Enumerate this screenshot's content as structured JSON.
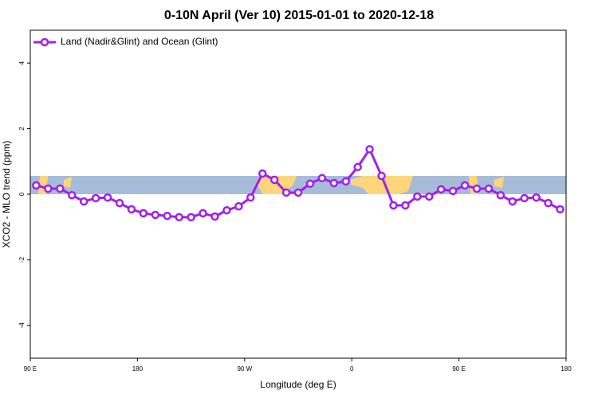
{
  "chart_data": {
    "type": "line",
    "title": "0-10N April (Ver 10)   2015-01-01 to 2020-12-18",
    "xlabel": "Longitude (deg E)",
    "ylabel": "XCO2 - MLO trend (ppm)",
    "x": [
      95,
      105,
      115,
      125,
      135,
      145,
      155,
      165,
      175,
      185,
      195,
      205,
      215,
      225,
      235,
      245,
      255,
      265,
      275,
      285,
      295,
      305,
      315,
      325,
      335,
      345,
      355,
      365,
      375,
      385,
      395,
      405,
      415,
      425,
      435,
      445,
      455,
      465,
      475,
      485,
      495,
      505,
      515,
      525,
      535
    ],
    "series": [
      {
        "name": "Land (Nadir&Glint) and Ocean (Glint)",
        "color": "#a020f0",
        "values": [
          0.27,
          0.17,
          0.17,
          -0.03,
          -0.22,
          -0.12,
          -0.1,
          -0.27,
          -0.46,
          -0.58,
          -0.63,
          -0.66,
          -0.7,
          -0.7,
          -0.58,
          -0.68,
          -0.49,
          -0.37,
          -0.1,
          0.63,
          0.44,
          0.05,
          0.05,
          0.32,
          0.49,
          0.34,
          0.39,
          0.83,
          1.37,
          0.56,
          -0.34,
          -0.34,
          -0.07,
          -0.07,
          0.15,
          0.1,
          0.27,
          0.17,
          0.17,
          -0.03,
          -0.22,
          -0.12,
          -0.1,
          -0.27,
          -0.46
        ]
      }
    ],
    "xlim": [
      90,
      540
    ],
    "xticks": [
      {
        "value": 90,
        "label": "90 E"
      },
      {
        "value": 180,
        "label": "180"
      },
      {
        "value": 270,
        "label": "90 W"
      },
      {
        "value": 360,
        "label": "0"
      },
      {
        "value": 450,
        "label": "90 E"
      },
      {
        "value": 540,
        "label": "180"
      }
    ],
    "ylim": [
      -5,
      5
    ],
    "yticks": [
      -4,
      -2,
      0,
      2,
      4
    ],
    "legend": "top-left"
  }
}
